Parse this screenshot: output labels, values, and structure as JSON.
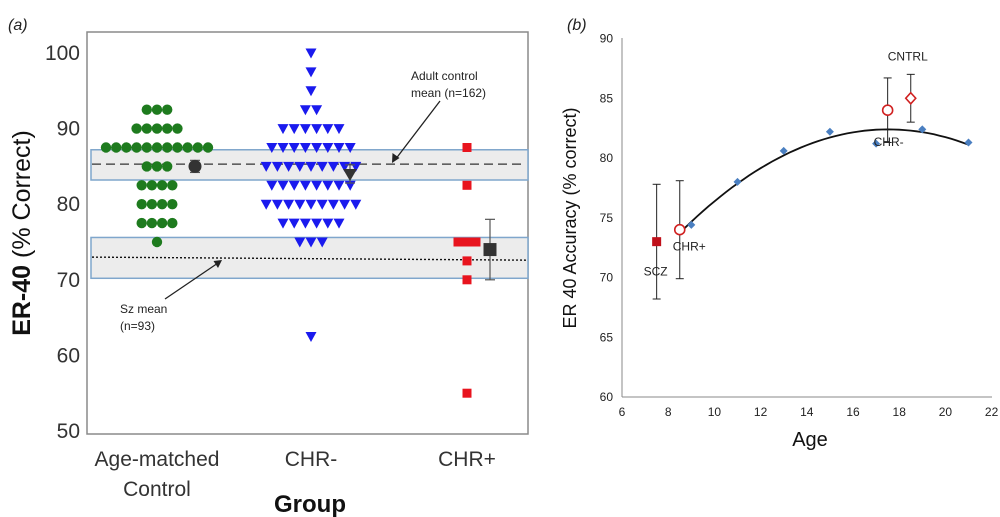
{
  "chart_data": [
    {
      "panel": "(a)",
      "type": "scatter",
      "xlabel": "Group",
      "ylabel_bold": "ER-40",
      "ylabel_rest": " (% Correct)",
      "ylim": [
        50,
        100
      ],
      "yticks": [
        50,
        60,
        70,
        80,
        90,
        100
      ],
      "categories": [
        "Age-matched\nControl",
        "CHR-",
        "CHR+"
      ],
      "category_lines": [
        [
          "Age-matched",
          "Control"
        ],
        [
          "CHR-"
        ],
        [
          "CHR+"
        ]
      ],
      "band_adult": [
        83.2,
        87.2
      ],
      "band_sz": [
        70.2,
        75.6
      ],
      "adult_mean_line": 85.3,
      "sz_mean_line": [
        73.0,
        72.6
      ],
      "groups": [
        {
          "name": "Age-matched Control",
          "color": "#1e7b1e",
          "marker": "circle",
          "values": [
            92.5,
            92.5,
            92.5,
            90,
            90,
            90,
            90,
            90,
            87.5,
            87.5,
            87.5,
            87.5,
            87.5,
            87.5,
            87.5,
            87.5,
            87.5,
            87.5,
            87.5,
            85,
            85,
            85,
            82.5,
            82.5,
            82.5,
            82.5,
            80,
            80,
            80,
            80,
            77.5,
            77.5,
            77.5,
            77.5,
            75
          ],
          "mean": 85,
          "err": 0.8
        },
        {
          "name": "CHR-",
          "color": "#1a1aee",
          "marker": "triangle-down",
          "values": [
            100,
            97.5,
            95,
            92.5,
            92.5,
            90,
            90,
            90,
            90,
            90,
            90,
            87.5,
            87.5,
            87.5,
            87.5,
            87.5,
            87.5,
            87.5,
            87.5,
            85,
            85,
            85,
            85,
            85,
            85,
            85,
            85,
            85,
            82.5,
            82.5,
            82.5,
            82.5,
            82.5,
            82.5,
            82.5,
            82.5,
            80,
            80,
            80,
            80,
            80,
            80,
            80,
            80,
            80,
            77.5,
            77.5,
            77.5,
            77.5,
            77.5,
            77.5,
            75,
            75,
            75,
            62.5
          ],
          "mean": 84,
          "err": 1.2
        },
        {
          "name": "CHR+",
          "color": "#e8141e",
          "marker": "square",
          "values": [
            87.5,
            82.5,
            75,
            75,
            75,
            72.5,
            70,
            55
          ],
          "mean": 74,
          "err": 4
        }
      ],
      "annotations": {
        "adult": [
          "Adult control",
          "mean (n=162)"
        ],
        "sz": [
          "Sz mean",
          "(n=93)"
        ]
      }
    },
    {
      "panel": "(b)",
      "type": "scatter",
      "xlabel": "Age",
      "ylabel": "ER 40 Accuracy (% correct)",
      "xlim": [
        6,
        22
      ],
      "ylim": [
        60,
        90
      ],
      "xticks": [
        6,
        8,
        10,
        12,
        14,
        16,
        18,
        20,
        22
      ],
      "yticks": [
        60,
        65,
        70,
        75,
        80,
        85,
        90
      ],
      "normative": {
        "color": "#4a7fc1",
        "points": [
          [
            9,
            74.4
          ],
          [
            11,
            78
          ],
          [
            13,
            80.6
          ],
          [
            15,
            82.2
          ],
          [
            17,
            81.2
          ],
          [
            19,
            82.4
          ],
          [
            21,
            81.3
          ]
        ]
      },
      "trend": {
        "color": "#111111"
      },
      "groups": [
        {
          "name": "SCZ",
          "x": 7.5,
          "y": 73,
          "err": 4.8,
          "marker": "filled-square",
          "color": "#c0101a"
        },
        {
          "name": "CHR+",
          "x": 8.5,
          "y": 74,
          "err": 4.1,
          "marker": "open-circle",
          "color": "#d02020"
        },
        {
          "name": "CHR-",
          "x": 17.5,
          "y": 84,
          "err": 2.7,
          "marker": "open-circle",
          "color": "#d02020"
        },
        {
          "name": "CNTRL",
          "x": 18.5,
          "y": 85,
          "err": 2,
          "marker": "open-diamond",
          "color": "#d02020"
        }
      ]
    }
  ]
}
